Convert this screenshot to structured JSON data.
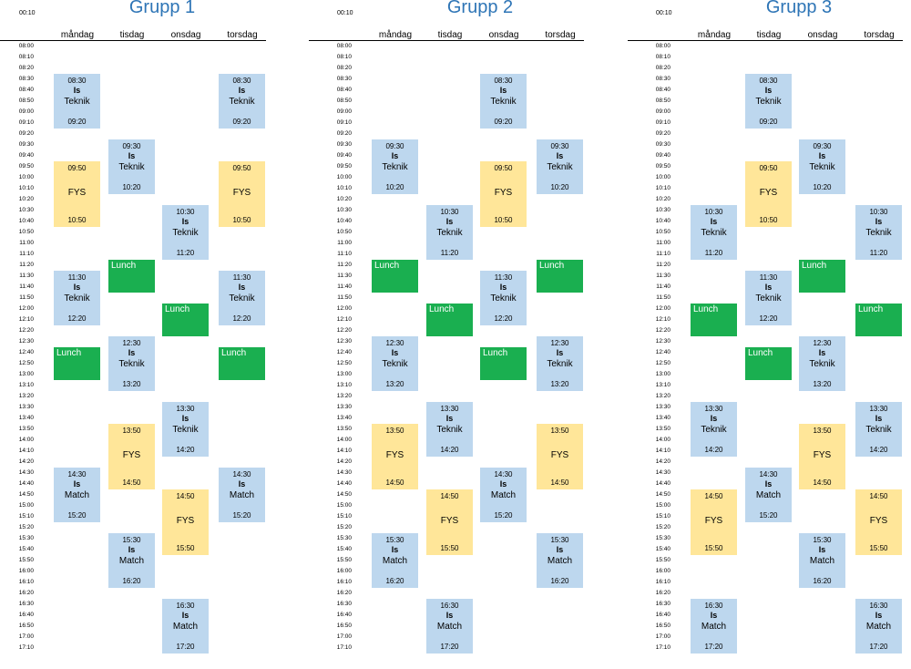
{
  "top_label": "00:10",
  "days": [
    "måndag",
    "tisdag",
    "onsdag",
    "torsdag"
  ],
  "times": [
    "08:00",
    "08:10",
    "08:20",
    "08:30",
    "08:40",
    "08:50",
    "09:00",
    "09:10",
    "09:20",
    "09:30",
    "09:40",
    "09:50",
    "10:00",
    "10:10",
    "10:20",
    "10:30",
    "10:40",
    "10:50",
    "11:00",
    "11:10",
    "11:20",
    "11:30",
    "11:40",
    "11:50",
    "12:00",
    "12:10",
    "12:20",
    "12:30",
    "12:40",
    "12:50",
    "13:00",
    "13:10",
    "13:20",
    "13:30",
    "13:40",
    "13:50",
    "14:00",
    "14:10",
    "14:20",
    "14:30",
    "14:40",
    "14:50",
    "15:00",
    "15:10",
    "15:20",
    "15:30",
    "15:40",
    "15:50",
    "16:00",
    "16:10",
    "16:20",
    "16:30",
    "16:40",
    "16:50",
    "17:00",
    "17:10"
  ],
  "groups": [
    {
      "title": "Grupp 1",
      "blocks": [
        {
          "day": 0,
          "type": "session",
          "start": "08:30",
          "end": "09:20",
          "code": "Is",
          "name": "Teknik"
        },
        {
          "day": 3,
          "type": "session",
          "start": "08:30",
          "end": "09:20",
          "code": "Is",
          "name": "Teknik"
        },
        {
          "day": 1,
          "type": "session",
          "start": "09:30",
          "end": "10:20",
          "code": "Is",
          "name": "Teknik"
        },
        {
          "day": 0,
          "type": "fys",
          "start": "09:50",
          "end": "10:50",
          "name": "FYS"
        },
        {
          "day": 3,
          "type": "fys",
          "start": "09:50",
          "end": "10:50",
          "name": "FYS"
        },
        {
          "day": 2,
          "type": "session",
          "start": "10:30",
          "end": "11:20",
          "code": "Is",
          "name": "Teknik"
        },
        {
          "day": 1,
          "type": "lunch",
          "start": "11:20",
          "end": "11:50",
          "name": "Lunch"
        },
        {
          "day": 0,
          "type": "session",
          "start": "11:30",
          "end": "12:20",
          "code": "Is",
          "name": "Teknik"
        },
        {
          "day": 3,
          "type": "session",
          "start": "11:30",
          "end": "12:20",
          "code": "Is",
          "name": "Teknik"
        },
        {
          "day": 2,
          "type": "lunch",
          "start": "12:00",
          "end": "12:30",
          "name": "Lunch"
        },
        {
          "day": 1,
          "type": "session",
          "start": "12:30",
          "end": "13:20",
          "code": "Is",
          "name": "Teknik"
        },
        {
          "day": 0,
          "type": "lunch",
          "start": "12:40",
          "end": "13:10",
          "name": "Lunch"
        },
        {
          "day": 3,
          "type": "lunch",
          "start": "12:40",
          "end": "13:10",
          "name": "Lunch"
        },
        {
          "day": 2,
          "type": "session",
          "start": "13:30",
          "end": "14:20",
          "code": "Is",
          "name": "Teknik"
        },
        {
          "day": 1,
          "type": "fys",
          "start": "13:50",
          "end": "14:50",
          "name": "FYS"
        },
        {
          "day": 0,
          "type": "session",
          "start": "14:30",
          "end": "15:20",
          "code": "Is",
          "name": "Match"
        },
        {
          "day": 3,
          "type": "session",
          "start": "14:30",
          "end": "15:20",
          "code": "Is",
          "name": "Match"
        },
        {
          "day": 2,
          "type": "fys",
          "start": "14:50",
          "end": "15:50",
          "name": "FYS"
        },
        {
          "day": 1,
          "type": "session",
          "start": "15:30",
          "end": "16:20",
          "code": "Is",
          "name": "Match"
        },
        {
          "day": 2,
          "type": "session",
          "start": "16:30",
          "end": "17:20",
          "code": "Is",
          "name": "Match"
        }
      ]
    },
    {
      "title": "Grupp 2",
      "blocks": [
        {
          "day": 2,
          "type": "session",
          "start": "08:30",
          "end": "09:20",
          "code": "Is",
          "name": "Teknik"
        },
        {
          "day": 0,
          "type": "session",
          "start": "09:30",
          "end": "10:20",
          "code": "Is",
          "name": "Teknik"
        },
        {
          "day": 3,
          "type": "session",
          "start": "09:30",
          "end": "10:20",
          "code": "Is",
          "name": "Teknik"
        },
        {
          "day": 2,
          "type": "fys",
          "start": "09:50",
          "end": "10:50",
          "name": "FYS"
        },
        {
          "day": 1,
          "type": "session",
          "start": "10:30",
          "end": "11:20",
          "code": "Is",
          "name": "Teknik"
        },
        {
          "day": 0,
          "type": "lunch",
          "start": "11:20",
          "end": "11:50",
          "name": "Lunch"
        },
        {
          "day": 3,
          "type": "lunch",
          "start": "11:20",
          "end": "11:50",
          "name": "Lunch"
        },
        {
          "day": 2,
          "type": "session",
          "start": "11:30",
          "end": "12:20",
          "code": "Is",
          "name": "Teknik"
        },
        {
          "day": 1,
          "type": "lunch",
          "start": "12:00",
          "end": "12:30",
          "name": "Lunch"
        },
        {
          "day": 0,
          "type": "session",
          "start": "12:30",
          "end": "13:20",
          "code": "Is",
          "name": "Teknik"
        },
        {
          "day": 3,
          "type": "session",
          "start": "12:30",
          "end": "13:20",
          "code": "Is",
          "name": "Teknik"
        },
        {
          "day": 2,
          "type": "lunch",
          "start": "12:40",
          "end": "13:10",
          "name": "Lunch"
        },
        {
          "day": 1,
          "type": "session",
          "start": "13:30",
          "end": "14:20",
          "code": "Is",
          "name": "Teknik"
        },
        {
          "day": 0,
          "type": "fys",
          "start": "13:50",
          "end": "14:50",
          "name": "FYS"
        },
        {
          "day": 3,
          "type": "fys",
          "start": "13:50",
          "end": "14:50",
          "name": "FYS"
        },
        {
          "day": 2,
          "type": "session",
          "start": "14:30",
          "end": "15:20",
          "code": "Is",
          "name": "Match"
        },
        {
          "day": 1,
          "type": "fys",
          "start": "14:50",
          "end": "15:50",
          "name": "FYS"
        },
        {
          "day": 0,
          "type": "session",
          "start": "15:30",
          "end": "16:20",
          "code": "Is",
          "name": "Match"
        },
        {
          "day": 3,
          "type": "session",
          "start": "15:30",
          "end": "16:20",
          "code": "Is",
          "name": "Match"
        },
        {
          "day": 1,
          "type": "session",
          "start": "16:30",
          "end": "17:20",
          "code": "Is",
          "name": "Match"
        }
      ]
    },
    {
      "title": "Grupp 3",
      "blocks": [
        {
          "day": 1,
          "type": "session",
          "start": "08:30",
          "end": "09:20",
          "code": "Is",
          "name": "Teknik"
        },
        {
          "day": 2,
          "type": "session",
          "start": "09:30",
          "end": "10:20",
          "code": "Is",
          "name": "Teknik"
        },
        {
          "day": 1,
          "type": "fys",
          "start": "09:50",
          "end": "10:50",
          "name": "FYS"
        },
        {
          "day": 0,
          "type": "session",
          "start": "10:30",
          "end": "11:20",
          "code": "Is",
          "name": "Teknik"
        },
        {
          "day": 3,
          "type": "session",
          "start": "10:30",
          "end": "11:20",
          "code": "Is",
          "name": "Teknik"
        },
        {
          "day": 2,
          "type": "lunch",
          "start": "11:20",
          "end": "11:50",
          "name": "Lunch"
        },
        {
          "day": 1,
          "type": "session",
          "start": "11:30",
          "end": "12:20",
          "code": "Is",
          "name": "Teknik"
        },
        {
          "day": 0,
          "type": "lunch",
          "start": "12:00",
          "end": "12:30",
          "name": "Lunch"
        },
        {
          "day": 3,
          "type": "lunch",
          "start": "12:00",
          "end": "12:30",
          "name": "Lunch"
        },
        {
          "day": 2,
          "type": "session",
          "start": "12:30",
          "end": "13:20",
          "code": "Is",
          "name": "Teknik"
        },
        {
          "day": 1,
          "type": "lunch",
          "start": "12:40",
          "end": "13:10",
          "name": "Lunch"
        },
        {
          "day": 0,
          "type": "session",
          "start": "13:30",
          "end": "14:20",
          "code": "Is",
          "name": "Teknik"
        },
        {
          "day": 3,
          "type": "session",
          "start": "13:30",
          "end": "14:20",
          "code": "Is",
          "name": "Teknik"
        },
        {
          "day": 2,
          "type": "fys",
          "start": "13:50",
          "end": "14:50",
          "name": "FYS"
        },
        {
          "day": 1,
          "type": "session",
          "start": "14:30",
          "end": "15:20",
          "code": "Is",
          "name": "Match"
        },
        {
          "day": 0,
          "type": "fys",
          "start": "14:50",
          "end": "15:50",
          "name": "FYS"
        },
        {
          "day": 3,
          "type": "fys",
          "start": "14:50",
          "end": "15:50",
          "name": "FYS"
        },
        {
          "day": 2,
          "type": "session",
          "start": "15:30",
          "end": "16:20",
          "code": "Is",
          "name": "Match"
        },
        {
          "day": 0,
          "type": "session",
          "start": "16:30",
          "end": "17:20",
          "code": "Is",
          "name": "Match"
        },
        {
          "day": 3,
          "type": "session",
          "start": "16:30",
          "end": "17:20",
          "code": "Is",
          "name": "Match"
        }
      ]
    }
  ],
  "colors": {
    "title": "#2e75b6",
    "session": "#bdd7ee",
    "fys": "#ffe699",
    "lunch": "#1aaf50"
  }
}
